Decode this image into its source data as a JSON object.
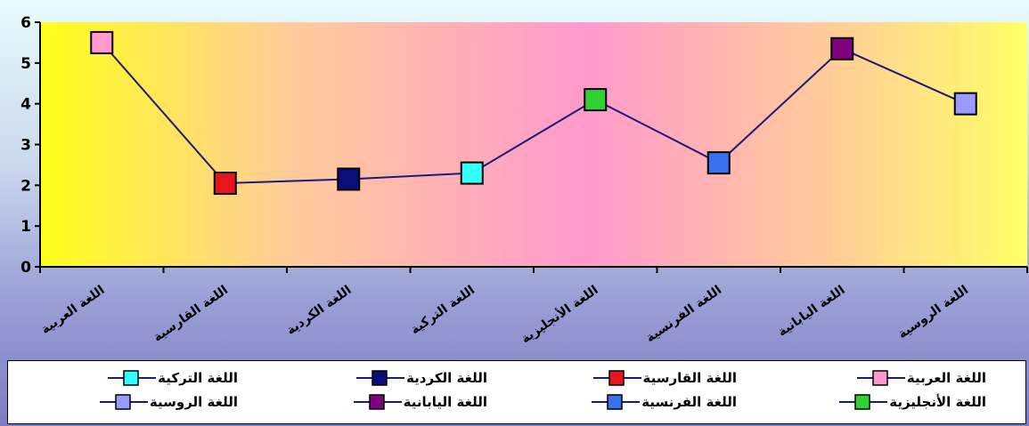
{
  "chart_data": {
    "type": "line",
    "title": "",
    "xlabel": "",
    "ylabel": "",
    "ylim": [
      0,
      6
    ],
    "yticks": [
      "0",
      "1",
      "2",
      "3",
      "4",
      "5",
      "6"
    ],
    "grid": false,
    "legend_position": "bottom",
    "line_color": "#1a1a7a",
    "categories": [
      "اللغة العربية",
      "اللغة القارسية",
      "اللغة الكردية",
      "اللغة التركية",
      "اللغة الأنجليزية",
      "اللغة الفرنسية",
      "اللغة اليابانية",
      "اللغة الروسية"
    ],
    "values": [
      5.5,
      2.05,
      2.15,
      2.3,
      4.1,
      2.55,
      5.35,
      4.0
    ],
    "marker_colors": [
      "#ff99cc",
      "#e8141c",
      "#0b0b7a",
      "#33ffff",
      "#2fd22f",
      "#3a6ff0",
      "#800080",
      "#9999ff"
    ]
  }
}
